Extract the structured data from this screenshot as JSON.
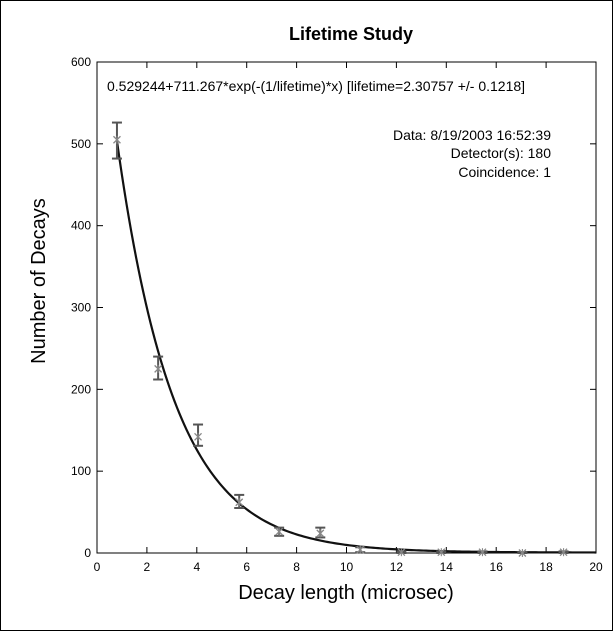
{
  "chart_data": {
    "type": "scatter",
    "title": "Lifetime Study",
    "xlabel": "Decay length (microsec)",
    "ylabel": "Number of Decays",
    "xlim": [
      0,
      20
    ],
    "ylim": [
      0,
      600
    ],
    "x_ticks": [
      0,
      2,
      4,
      6,
      8,
      10,
      12,
      14,
      16,
      18,
      20
    ],
    "y_ticks": [
      0,
      100,
      200,
      300,
      400,
      500,
      600
    ],
    "grid": false,
    "fit_label": "0.529244+711.267*exp(-(1/lifetime)*x) [lifetime=2.30757 +/- 0.1218]",
    "fit": {
      "a": 0.529244,
      "b": 711.267,
      "lifetime": 2.30757
    },
    "info_lines": [
      "Data: 8/19/2003 16:52:39",
      "Detector(s): 180",
      "Coincidence: 1"
    ],
    "series": [
      {
        "x": [
          0.8,
          2.45,
          4.05,
          5.7,
          7.3,
          8.95,
          10.55,
          12.2,
          13.8,
          15.45,
          17.05,
          18.7
        ],
        "y": [
          505,
          225,
          142,
          62,
          26,
          24,
          4,
          1,
          1,
          1,
          0,
          1
        ],
        "err_low": [
          482,
          212,
          131,
          55,
          21,
          19,
          1,
          0,
          0,
          0,
          0,
          0
        ],
        "err_high": [
          526,
          240,
          157,
          71,
          31,
          31,
          7,
          2,
          2,
          2,
          1,
          2
        ]
      }
    ],
    "colors": {
      "points": "#888888",
      "errorbars": "#555555",
      "fit_line": "#111111",
      "axes": "#000000"
    }
  }
}
